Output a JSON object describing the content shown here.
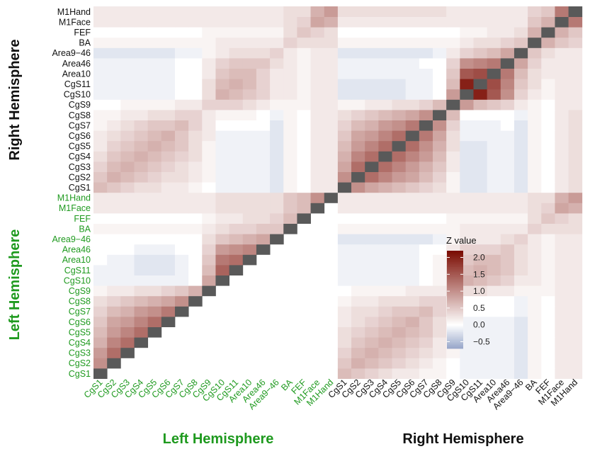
{
  "chart_data": {
    "type": "heatmap",
    "lower_triangle": "Left Hemisphere",
    "upper_triangle": "Right Hemisphere",
    "left_labels": [
      "CgS1",
      "CgS2",
      "CgS3",
      "CgS4",
      "CgS5",
      "CgS6",
      "CgS7",
      "CgS8",
      "CgS9",
      "CgS10",
      "CgS11",
      "Area10",
      "Area46",
      "Area9−46",
      "BA",
      "FEF",
      "M1Face",
      "M1Hand"
    ],
    "right_labels": [
      "CgS1",
      "CgS2",
      "CgS3",
      "CgS4",
      "CgS5",
      "CgS6",
      "CgS7",
      "CgS8",
      "CgS9",
      "CgS10",
      "CgS11",
      "Area10",
      "Area46",
      "Area9−46",
      "BA",
      "FEF",
      "M1Face",
      "M1Hand"
    ],
    "left_color": "#1f9a1f",
    "right_color": "#111111",
    "diagonal_color": "#595959",
    "groups": {
      "x_left": "Left Hemisphere",
      "x_right": "Right Hemisphere",
      "y_left": "Left Hemisphere",
      "y_right": "Right Hemisphere"
    },
    "legend": {
      "title": "Z value",
      "ticks": [
        "2.0",
        "1.5",
        "1.0",
        "0.5",
        "0.0",
        "−0.5"
      ],
      "tick_values": [
        2.0,
        1.5,
        1.0,
        0.5,
        0.0,
        -0.5
      ],
      "range": [
        -0.7,
        2.2
      ],
      "colors": {
        "low": "#97a6c9",
        "mid": "#ffffff",
        "high": "#7a0a00"
      }
    },
    "left_matrix_lower": [
      [],
      [
        1.0
      ],
      [
        0.9,
        1.3
      ],
      [
        0.7,
        1.1,
        1.3
      ],
      [
        0.6,
        0.9,
        1.1,
        1.3
      ],
      [
        0.5,
        0.8,
        0.9,
        1.1,
        1.3
      ],
      [
        0.4,
        0.6,
        0.7,
        0.9,
        1.0,
        1.2
      ],
      [
        0.3,
        0.4,
        0.5,
        0.6,
        0.7,
        0.8,
        1.0
      ],
      [
        0.1,
        0.2,
        0.2,
        0.3,
        0.3,
        0.4,
        0.5,
        0.7
      ],
      [
        -0.1,
        -0.1,
        -0.1,
        -0.1,
        -0.1,
        -0.1,
        -0.1,
        0.0,
        0.8
      ],
      [
        -0.1,
        -0.1,
        -0.1,
        -0.2,
        -0.2,
        -0.2,
        -0.1,
        0.0,
        0.6,
        1.4
      ],
      [
        0.0,
        -0.1,
        -0.1,
        -0.2,
        -0.2,
        -0.2,
        -0.1,
        0.0,
        0.5,
        1.2,
        1.3
      ],
      [
        0.0,
        0.0,
        0.0,
        -0.1,
        -0.1,
        -0.1,
        0.0,
        0.0,
        0.4,
        0.9,
        1.0,
        1.1
      ],
      [
        0.0,
        0.0,
        0.0,
        0.0,
        0.0,
        0.0,
        0.0,
        0.0,
        0.3,
        0.5,
        0.6,
        0.7,
        0.8
      ],
      [
        0.1,
        0.1,
        0.1,
        0.1,
        0.1,
        0.1,
        0.1,
        0.1,
        0.2,
        0.3,
        0.4,
        0.4,
        0.5,
        0.5
      ],
      [
        0.0,
        0.0,
        0.0,
        0.0,
        0.0,
        0.0,
        0.0,
        0.0,
        0.1,
        0.2,
        0.2,
        0.3,
        0.3,
        0.4,
        0.6
      ],
      [
        0.2,
        0.2,
        0.2,
        0.2,
        0.2,
        0.2,
        0.2,
        0.2,
        0.2,
        0.3,
        0.3,
        0.3,
        0.3,
        0.3,
        0.5,
        0.6
      ],
      [
        0.2,
        0.2,
        0.2,
        0.2,
        0.2,
        0.2,
        0.2,
        0.2,
        0.2,
        0.3,
        0.3,
        0.3,
        0.3,
        0.3,
        0.5,
        0.6,
        1.0
      ]
    ],
    "right_matrix_lower": [
      [],
      [
        1.0
      ],
      [
        0.8,
        1.3
      ],
      [
        0.7,
        1.1,
        1.3
      ],
      [
        0.6,
        0.9,
        1.1,
        1.3
      ],
      [
        0.5,
        0.8,
        0.9,
        1.1,
        1.3
      ],
      [
        0.4,
        0.6,
        0.7,
        0.9,
        1.0,
        1.2
      ],
      [
        0.3,
        0.4,
        0.5,
        0.6,
        0.7,
        0.8,
        1.0
      ],
      [
        0.1,
        0.1,
        0.2,
        0.2,
        0.3,
        0.3,
        0.4,
        0.6
      ],
      [
        -0.2,
        -0.2,
        -0.2,
        -0.2,
        -0.2,
        -0.1,
        -0.1,
        0.0,
        0.9
      ],
      [
        -0.2,
        -0.2,
        -0.2,
        -0.2,
        -0.2,
        -0.1,
        -0.1,
        0.0,
        0.6,
        2.0
      ],
      [
        -0.1,
        -0.1,
        -0.1,
        -0.1,
        -0.1,
        -0.1,
        -0.1,
        0.0,
        0.5,
        1.5,
        1.6
      ],
      [
        -0.1,
        -0.1,
        -0.1,
        -0.1,
        -0.1,
        -0.1,
        0.0,
        0.0,
        0.4,
        1.0,
        1.1,
        1.2
      ],
      [
        -0.2,
        -0.2,
        -0.2,
        -0.2,
        -0.2,
        -0.2,
        -0.2,
        -0.1,
        0.2,
        0.4,
        0.5,
        0.6,
        0.8
      ],
      [
        0.1,
        0.1,
        0.1,
        0.1,
        0.1,
        0.1,
        0.1,
        0.1,
        0.1,
        0.2,
        0.3,
        0.3,
        0.4,
        0.5
      ],
      [
        0.0,
        0.0,
        0.0,
        0.0,
        0.0,
        0.0,
        0.0,
        0.0,
        0.0,
        0.1,
        0.1,
        0.2,
        0.2,
        0.3,
        0.7
      ],
      [
        0.2,
        0.2,
        0.2,
        0.2,
        0.2,
        0.2,
        0.2,
        0.2,
        0.2,
        0.2,
        0.2,
        0.2,
        0.2,
        0.2,
        0.5,
        0.7
      ],
      [
        0.3,
        0.3,
        0.3,
        0.3,
        0.3,
        0.3,
        0.3,
        0.3,
        0.2,
        0.2,
        0.2,
        0.2,
        0.2,
        0.2,
        0.4,
        0.5,
        1.2
      ]
    ],
    "interhemispheric": [
      [
        0.6,
        0.5,
        0.4,
        0.3,
        0.2,
        0.2,
        0.1,
        0.1,
        0.0,
        -0.1,
        -0.1,
        -0.1,
        -0.1,
        -0.2,
        0.1,
        0.0,
        0.2,
        0.2
      ],
      [
        0.5,
        0.7,
        0.6,
        0.5,
        0.4,
        0.3,
        0.2,
        0.1,
        0.0,
        -0.1,
        -0.1,
        -0.1,
        -0.1,
        -0.2,
        0.1,
        0.0,
        0.2,
        0.2
      ],
      [
        0.4,
        0.6,
        0.7,
        0.6,
        0.5,
        0.4,
        0.3,
        0.2,
        0.1,
        -0.1,
        -0.1,
        -0.1,
        -0.1,
        -0.2,
        0.1,
        0.0,
        0.2,
        0.2
      ],
      [
        0.3,
        0.5,
        0.6,
        0.7,
        0.6,
        0.5,
        0.4,
        0.2,
        0.1,
        -0.1,
        -0.1,
        -0.1,
        -0.1,
        -0.2,
        0.1,
        0.0,
        0.2,
        0.2
      ],
      [
        0.3,
        0.4,
        0.5,
        0.6,
        0.7,
        0.6,
        0.5,
        0.3,
        0.1,
        -0.1,
        -0.1,
        -0.1,
        -0.1,
        -0.2,
        0.1,
        0.0,
        0.2,
        0.2
      ],
      [
        0.2,
        0.3,
        0.4,
        0.5,
        0.6,
        0.7,
        0.5,
        0.3,
        0.1,
        -0.1,
        -0.1,
        -0.1,
        -0.1,
        -0.2,
        0.1,
        0.0,
        0.2,
        0.2
      ],
      [
        0.2,
        0.3,
        0.3,
        0.4,
        0.5,
        0.5,
        0.6,
        0.4,
        0.2,
        0.0,
        0.0,
        0.0,
        0.0,
        -0.1,
        0.1,
        0.0,
        0.2,
        0.2
      ],
      [
        0.1,
        0.2,
        0.2,
        0.3,
        0.3,
        0.3,
        0.4,
        0.4,
        0.2,
        0.0,
        0.0,
        0.0,
        0.0,
        -0.1,
        0.1,
        0.0,
        0.2,
        0.2
      ],
      [
        0.0,
        0.1,
        0.1,
        0.1,
        0.1,
        0.2,
        0.2,
        0.2,
        0.4,
        0.3,
        0.3,
        0.2,
        0.2,
        0.1,
        0.1,
        0.1,
        0.2,
        0.2
      ],
      [
        -0.1,
        -0.1,
        -0.1,
        -0.1,
        -0.1,
        -0.1,
        0.0,
        0.1,
        0.4,
        0.7,
        0.6,
        0.5,
        0.4,
        0.2,
        0.2,
        0.1,
        0.2,
        0.2
      ],
      [
        -0.1,
        -0.1,
        -0.1,
        -0.1,
        -0.1,
        -0.1,
        0.0,
        0.1,
        0.4,
        0.6,
        0.7,
        0.6,
        0.5,
        0.3,
        0.2,
        0.1,
        0.2,
        0.2
      ],
      [
        -0.1,
        -0.1,
        -0.1,
        -0.1,
        -0.1,
        -0.1,
        0.0,
        0.1,
        0.3,
        0.5,
        0.6,
        0.6,
        0.5,
        0.3,
        0.2,
        0.1,
        0.2,
        0.2
      ],
      [
        -0.1,
        -0.1,
        -0.1,
        -0.1,
        -0.1,
        -0.1,
        0.0,
        0.0,
        0.2,
        0.4,
        0.4,
        0.4,
        0.5,
        0.3,
        0.2,
        0.1,
        0.2,
        0.2
      ],
      [
        -0.2,
        -0.2,
        -0.2,
        -0.2,
        -0.2,
        -0.2,
        -0.2,
        -0.1,
        0.1,
        0.2,
        0.2,
        0.2,
        0.3,
        0.4,
        0.2,
        0.1,
        0.2,
        0.2
      ],
      [
        0.1,
        0.1,
        0.1,
        0.1,
        0.1,
        0.1,
        0.1,
        0.1,
        0.1,
        0.2,
        0.2,
        0.2,
        0.2,
        0.2,
        0.4,
        0.3,
        0.3,
        0.3
      ],
      [
        0.0,
        0.0,
        0.0,
        0.0,
        0.0,
        0.0,
        0.0,
        0.0,
        0.1,
        0.1,
        0.1,
        0.1,
        0.1,
        0.1,
        0.3,
        0.5,
        0.4,
        0.3
      ],
      [
        0.2,
        0.2,
        0.2,
        0.2,
        0.2,
        0.2,
        0.2,
        0.2,
        0.2,
        0.2,
        0.2,
        0.2,
        0.2,
        0.2,
        0.3,
        0.4,
        0.8,
        0.7
      ],
      [
        0.2,
        0.2,
        0.2,
        0.2,
        0.2,
        0.2,
        0.2,
        0.2,
        0.2,
        0.2,
        0.2,
        0.2,
        0.2,
        0.2,
        0.3,
        0.3,
        0.7,
        0.9
      ]
    ]
  }
}
